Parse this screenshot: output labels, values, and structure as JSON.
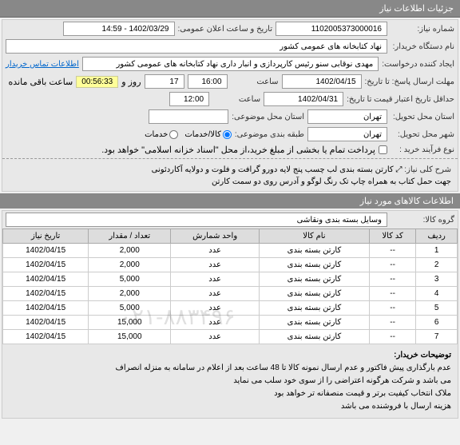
{
  "header": {
    "title": "جزئیات اطلاعات نیاز"
  },
  "fields": {
    "need_no_label": "شماره نیاز:",
    "need_no": "1102005373000016",
    "announce_label": "تاریخ و ساعت اعلان عمومی:",
    "announce": "1402/03/29 - 14:59",
    "org_label": "نام دستگاه خریدار:",
    "org": "نهاد کتابخانه های عمومی کشور",
    "creator_label": "ایجاد کننده درخواست:",
    "creator": "مهدی نوقابی سنو رئیس کارپردازی و انبار داری نهاد کتابخانه های عمومی کشور",
    "contact_link": "اطلاعات تماس خریدار",
    "deadline_label": "مهلت ارسال پاسخ: تا تاریخ:",
    "deadline_date": "1402/04/15",
    "time_label": "ساعت",
    "deadline_time": "16:00",
    "days_left": "17",
    "days_label": "روز و",
    "timer": "00:56:33",
    "remain_label": "ساعت باقی مانده",
    "valid_label": "حداقل تاریخ اعتبار قیمت تا تاریخ:",
    "valid_date": "1402/04/31",
    "valid_time": "12:00",
    "province_label": "استان محل تحویل:",
    "province": "تهران",
    "subject_province_label": "استان محل موضوعی:",
    "city_label": "شهر محل تحویل:",
    "city": "تهران",
    "class_label": "طبقه بندی موضوعی:",
    "class_goods": "کالا/خدمات",
    "class_service": "خدمات",
    "process_label": "نوع فرآیند خرید :",
    "process_note": "پرداخت تمام یا بخشی از مبلغ خرید،از محل \"اسناد خزانه اسلامی\" خواهد بود.",
    "desc_label": "شرح کلی نیاز:",
    "desc_line1": "کارتن بسته بندی لب چسب پنج لایه دورو گرافت و فلوت و دولایه آکاردئونی",
    "desc_line2": "جهت حمل کتاب به همراه چاپ تک رنگ لوگو و آدرس روی دو سمت کارتن"
  },
  "items_header": "اطلاعات کالاهای مورد نیاز",
  "group": {
    "label": "گروه کالا:",
    "value": "وسایل بسته بندی  ونقاشی"
  },
  "table": {
    "cols": [
      "ردیف",
      "کد کالا",
      "نام کالا",
      "واحد شمارش",
      "تعداد / مقدار",
      "تاریخ نیاز"
    ],
    "rows": [
      [
        "1",
        "--",
        "کارتن بسته بندی",
        "عدد",
        "2,000",
        "1402/04/15"
      ],
      [
        "2",
        "--",
        "کارتن بسته بندی",
        "عدد",
        "2,000",
        "1402/04/15"
      ],
      [
        "3",
        "--",
        "کارتن بسته بندی",
        "عدد",
        "5,000",
        "1402/04/15"
      ],
      [
        "4",
        "--",
        "کارتن بسته بندی",
        "عدد",
        "2,000",
        "1402/04/15"
      ],
      [
        "5",
        "--",
        "کارتن بسته بندی",
        "عدد",
        "5,000",
        "1402/04/15"
      ],
      [
        "6",
        "--",
        "کارتن بسته بندی",
        "عدد",
        "15,000",
        "1402/04/15"
      ],
      [
        "7",
        "--",
        "کارتن بسته بندی",
        "عدد",
        "15,000",
        "1402/04/15"
      ]
    ]
  },
  "watermark": "۰۲۱-۸۸۳۴۹۶",
  "notes": {
    "label": "توضیحات خریدار:",
    "line1": "عدم بارگذاری پیش فاکتور و عدم ارسال نمونه کالا تا 48 ساعت بعد از اعلام در سامانه به منزله انصراف",
    "line2": "می باشد و شرکت هرگونه اعتراضی را از سوی خود سلب می نماید",
    "line3": "ملاک انتخاب کیفیت برتر و قیمت منصفانه تر خواهد بود",
    "line4": "هزینه ارسال با فروشنده می باشد"
  }
}
